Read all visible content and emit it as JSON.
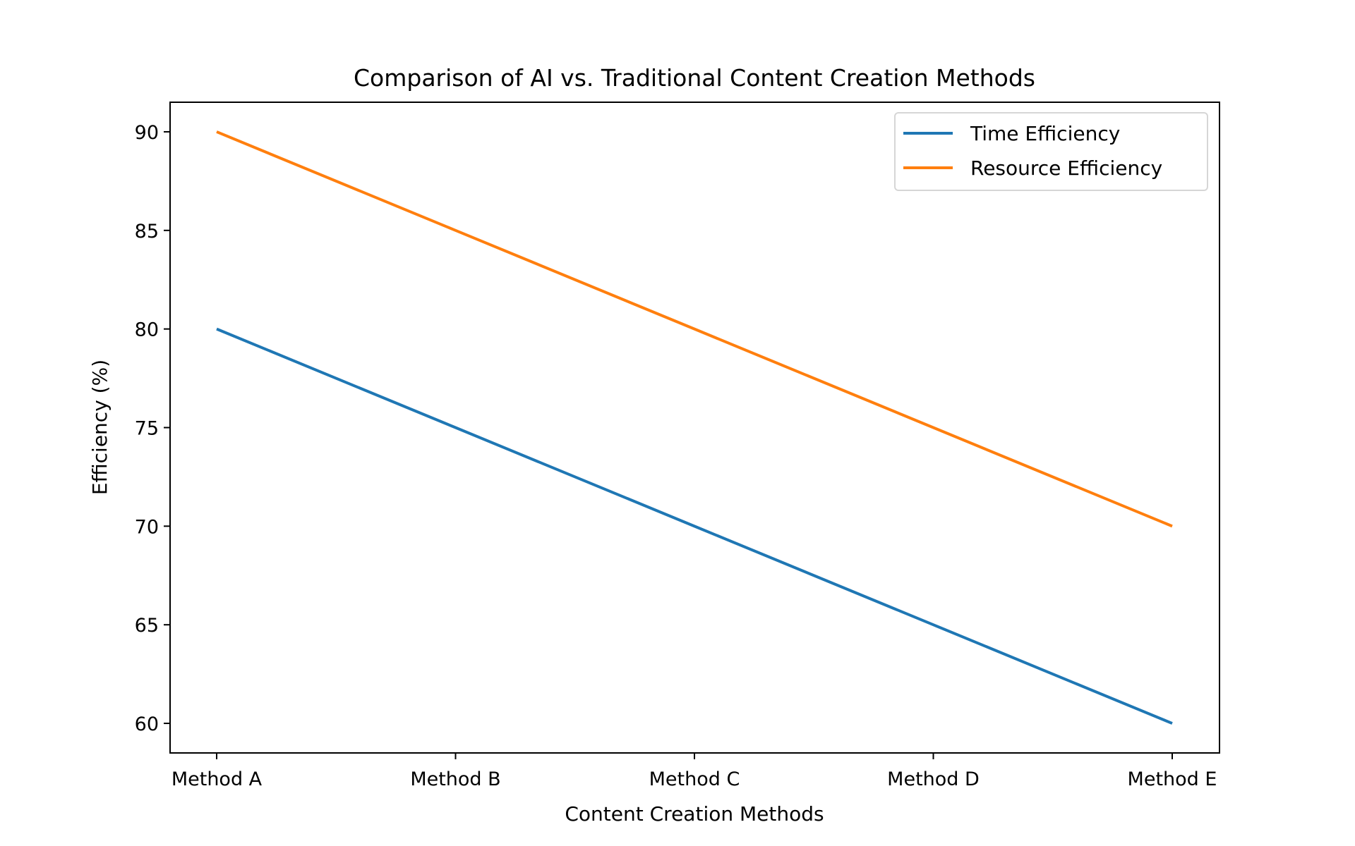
{
  "chart_data": {
    "type": "line",
    "title": "Comparison of AI vs. Traditional Content Creation Methods",
    "xlabel": "Content Creation Methods",
    "ylabel": "Efficiency (%)",
    "categories": [
      "Method A",
      "Method B",
      "Method C",
      "Method D",
      "Method E"
    ],
    "yticks": [
      60,
      65,
      70,
      75,
      80,
      85,
      90
    ],
    "ylim": [
      58.5,
      91.5
    ],
    "grid": false,
    "legend_position": "top-right",
    "series": [
      {
        "name": "Time Efficiency",
        "color": "#1f77b4",
        "values": [
          80,
          75,
          70,
          65,
          60
        ]
      },
      {
        "name": "Resource Efficiency",
        "color": "#ff7f0e",
        "values": [
          90,
          85,
          80,
          75,
          70
        ]
      }
    ]
  }
}
